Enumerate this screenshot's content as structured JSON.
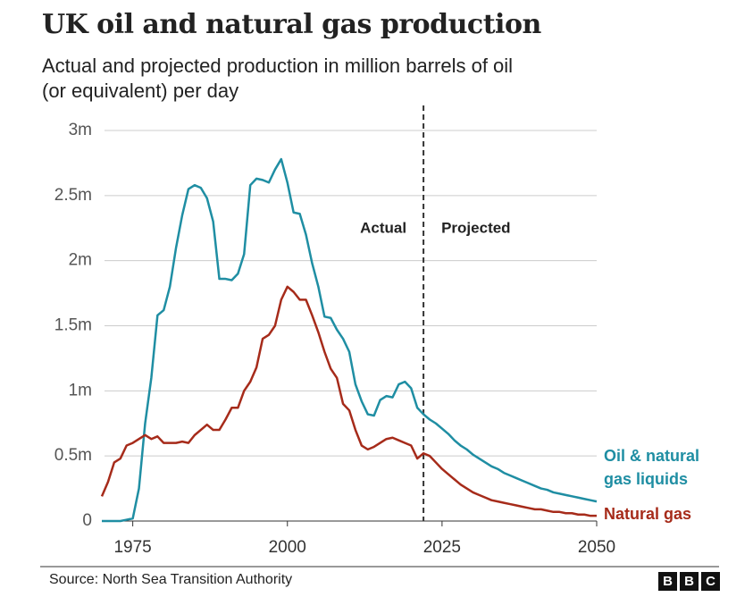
{
  "chart_data": {
    "type": "line",
    "title": "UK oil and natural gas production",
    "subtitle": "Actual and projected production in million barrels of oil (or equivalent) per day",
    "x": [
      1970,
      1971,
      1972,
      1973,
      1974,
      1975,
      1976,
      1977,
      1978,
      1979,
      1980,
      1981,
      1982,
      1983,
      1984,
      1985,
      1986,
      1987,
      1988,
      1989,
      1990,
      1991,
      1992,
      1993,
      1994,
      1995,
      1996,
      1997,
      1998,
      1999,
      2000,
      2001,
      2002,
      2003,
      2004,
      2005,
      2006,
      2007,
      2008,
      2009,
      2010,
      2011,
      2012,
      2013,
      2014,
      2015,
      2016,
      2017,
      2018,
      2019,
      2020,
      2021,
      2022,
      2023,
      2024,
      2025,
      2026,
      2027,
      2028,
      2029,
      2030,
      2031,
      2032,
      2033,
      2034,
      2035,
      2036,
      2037,
      2038,
      2039,
      2040,
      2041,
      2042,
      2043,
      2044,
      2045,
      2046,
      2047,
      2048,
      2049,
      2050
    ],
    "series": [
      {
        "name": "Oil & natural gas liquids",
        "color": "#1f8ea3",
        "values": [
          0,
          0,
          0,
          0,
          0.01,
          0.02,
          0.25,
          0.75,
          1.1,
          1.58,
          1.62,
          1.8,
          2.1,
          2.35,
          2.55,
          2.58,
          2.56,
          2.48,
          2.3,
          1.86,
          1.86,
          1.85,
          1.9,
          2.05,
          2.58,
          2.63,
          2.62,
          2.6,
          2.7,
          2.78,
          2.6,
          2.37,
          2.36,
          2.2,
          1.98,
          1.8,
          1.57,
          1.56,
          1.47,
          1.4,
          1.3,
          1.05,
          0.92,
          0.82,
          0.81,
          0.93,
          0.96,
          0.95,
          1.05,
          1.07,
          1.02,
          0.87,
          0.82,
          0.78,
          0.75,
          0.71,
          0.67,
          0.62,
          0.58,
          0.55,
          0.51,
          0.48,
          0.45,
          0.42,
          0.4,
          0.37,
          0.35,
          0.33,
          0.31,
          0.29,
          0.27,
          0.25,
          0.24,
          0.22,
          0.21,
          0.2,
          0.19,
          0.18,
          0.17,
          0.16,
          0.15
        ]
      },
      {
        "name": "Natural gas",
        "color": "#a62b1a",
        "values": [
          0.19,
          0.3,
          0.45,
          0.48,
          0.58,
          0.6,
          0.63,
          0.66,
          0.63,
          0.65,
          0.6,
          0.6,
          0.6,
          0.61,
          0.6,
          0.66,
          0.7,
          0.74,
          0.7,
          0.7,
          0.78,
          0.87,
          0.87,
          1.0,
          1.07,
          1.18,
          1.4,
          1.43,
          1.5,
          1.7,
          1.8,
          1.76,
          1.7,
          1.7,
          1.58,
          1.45,
          1.3,
          1.17,
          1.1,
          0.9,
          0.85,
          0.7,
          0.58,
          0.55,
          0.57,
          0.6,
          0.63,
          0.64,
          0.62,
          0.6,
          0.58,
          0.48,
          0.52,
          0.5,
          0.45,
          0.4,
          0.36,
          0.32,
          0.28,
          0.25,
          0.22,
          0.2,
          0.18,
          0.16,
          0.15,
          0.14,
          0.13,
          0.12,
          0.11,
          0.1,
          0.09,
          0.09,
          0.08,
          0.07,
          0.07,
          0.06,
          0.06,
          0.05,
          0.05,
          0.04,
          0.04
        ]
      }
    ],
    "xlim": [
      1970,
      2050
    ],
    "xticks": [
      1975,
      2000,
      2025,
      2050
    ],
    "ylim": [
      0,
      3
    ],
    "yticks": [
      0,
      {
        "value": 0.5,
        "label": "0.5m"
      },
      {
        "value": 1,
        "label": "1m"
      },
      {
        "value": 1.5,
        "label": "1.5m"
      },
      {
        "value": 2,
        "label": "2m"
      },
      {
        "value": 2.5,
        "label": "2.5m"
      },
      {
        "value": 3,
        "label": "3m"
      }
    ],
    "grid": true,
    "divider": {
      "x": 2022,
      "left_label": "Actual",
      "right_label": "Projected"
    },
    "source": "Source: North Sea Transition Authority",
    "logo": [
      "B",
      "B",
      "C"
    ]
  }
}
